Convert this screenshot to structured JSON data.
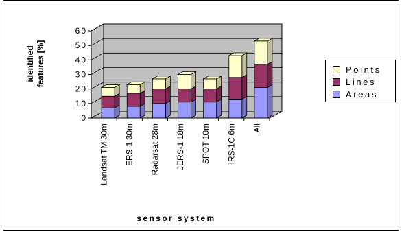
{
  "chart_data": {
    "type": "bar",
    "stacked": true,
    "three_d": true,
    "categories": [
      "Landsat TM  30m",
      "ERS-1  30m",
      "Radarsat  28m",
      "JERS-1  18m",
      "SPOT  10m",
      "IRS-1C  6m",
      "All"
    ],
    "series": [
      {
        "name": "Areas",
        "values": [
          7,
          8,
          10,
          11,
          11,
          13,
          21
        ],
        "color": "#9999ff"
      },
      {
        "name": "Lines",
        "values": [
          8,
          9,
          10,
          9,
          9,
          15,
          16
        ],
        "color": "#993366"
      },
      {
        "name": "Points",
        "values": [
          6,
          6,
          7,
          10,
          7,
          15,
          16
        ],
        "color": "#ffffcc"
      }
    ],
    "xlabel": "sensor system",
    "ylabel": "identified features [%]",
    "ylabel_lines": [
      "identified",
      "features [%]"
    ],
    "ylim": [
      0,
      60
    ],
    "yticks": [
      "0",
      "10",
      "20",
      "30",
      "40",
      "50",
      "60"
    ],
    "legend_order": [
      "Points",
      "Lines",
      "Areas"
    ],
    "legend_position": "right",
    "wall_color": "#c0c0c0",
    "grid": true
  }
}
